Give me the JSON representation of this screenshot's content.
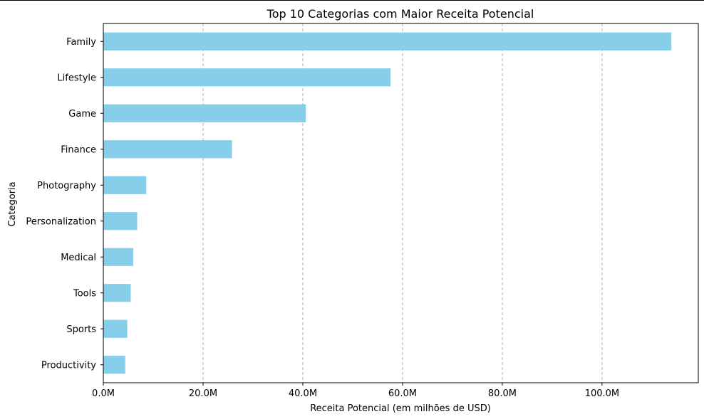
{
  "chart_data": {
    "type": "bar",
    "orientation": "horizontal",
    "title": "Top 10 Categorias com Maior Receita Potencial",
    "xlabel": "Receita Potencial (em milhões de USD)",
    "ylabel": "Categoria",
    "categories": [
      "Family",
      "Lifestyle",
      "Game",
      "Finance",
      "Photography",
      "Personalization",
      "Medical",
      "Tools",
      "Sports",
      "Productivity"
    ],
    "values": [
      113.9,
      57.6,
      40.6,
      25.8,
      8.6,
      6.8,
      6.0,
      5.5,
      4.8,
      4.4
    ],
    "value_unit": "M USD",
    "xticks": [
      0,
      20,
      40,
      60,
      80,
      100
    ],
    "xtick_labels": [
      "0.0M",
      "20.0M",
      "40.0M",
      "60.0M",
      "80.0M",
      "100.0M"
    ],
    "xlim": [
      0,
      119.3
    ],
    "grid": "x-dashed",
    "bar_color": "#87CEEB"
  }
}
